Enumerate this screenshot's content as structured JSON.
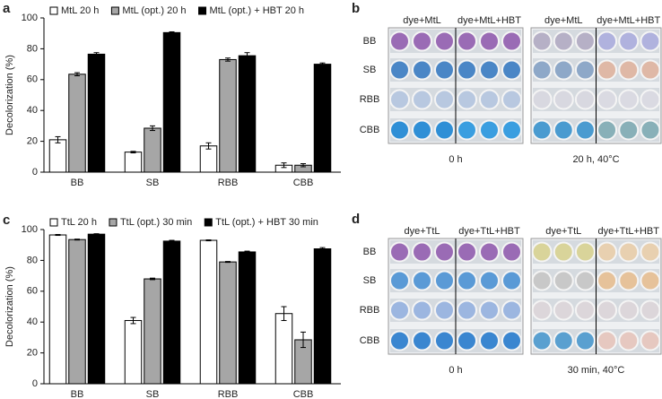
{
  "chart_data": [
    {
      "type": "bar",
      "panel_label": "a",
      "y_label": "Decolorization (%)",
      "categories": [
        "BB",
        "SB",
        "RBB",
        "CBB"
      ],
      "series": [
        {
          "name": "MtL 20 h",
          "color": "#ffffff",
          "values": [
            21,
            13,
            17,
            4.5
          ],
          "errors": [
            2,
            0.5,
            2,
            1.5
          ]
        },
        {
          "name": "MtL (opt.) 20 h",
          "color": "#a6a6a6",
          "values": [
            63.5,
            28.5,
            73,
            4.5
          ],
          "errors": [
            1,
            1.5,
            1,
            1
          ]
        },
        {
          "name": "MtL (opt.) + HBT 20 h",
          "color": "#000000",
          "values": [
            76.5,
            90.5,
            75.5,
            70
          ],
          "errors": [
            1,
            0.5,
            2,
            0.8
          ]
        }
      ],
      "ylim": [
        0,
        100
      ],
      "yticks": [
        0,
        20,
        40,
        60,
        80,
        100
      ]
    },
    {
      "type": "bar",
      "panel_label": "c",
      "y_label": "Decolorization (%)",
      "categories": [
        "BB",
        "SB",
        "RBB",
        "CBB"
      ],
      "series": [
        {
          "name": "TtL 20 h",
          "color": "#ffffff",
          "values": [
            96.5,
            41,
            93,
            45.5
          ],
          "errors": [
            0.3,
            2,
            0.3,
            4.5
          ]
        },
        {
          "name": "TtL (opt.) 30 min",
          "color": "#a6a6a6",
          "values": [
            93.5,
            68,
            79,
            28.5
          ],
          "errors": [
            0.3,
            0.5,
            0.3,
            5
          ]
        },
        {
          "name": "TtL (opt.) + HBT 30 min",
          "color": "#000000",
          "values": [
            97,
            92.5,
            85.5,
            87.5
          ],
          "errors": [
            0.3,
            0.5,
            0.5,
            0.8
          ]
        }
      ],
      "ylim": [
        0,
        100
      ],
      "yticks": [
        0,
        20,
        40,
        60,
        80,
        100
      ]
    }
  ],
  "photo_panels": [
    {
      "panel_label": "b",
      "column_headers": [
        "dye+MtL",
        "dye+MtL+HBT",
        "dye+MtL",
        "dye+MtL+HBT"
      ],
      "row_labels": [
        "BB",
        "SB",
        "RBB",
        "CBB"
      ],
      "captions": [
        "0 h",
        "20 h, 40°C"
      ]
    },
    {
      "panel_label": "d",
      "column_headers": [
        "dye+TtL",
        "dye+TtL+HBT",
        "dye+TtL",
        "dye+TtL+HBT"
      ],
      "row_labels": [
        "BB",
        "SB",
        "RBB",
        "CBB"
      ],
      "captions": [
        "0 h",
        "30 min, 40°C"
      ]
    }
  ]
}
